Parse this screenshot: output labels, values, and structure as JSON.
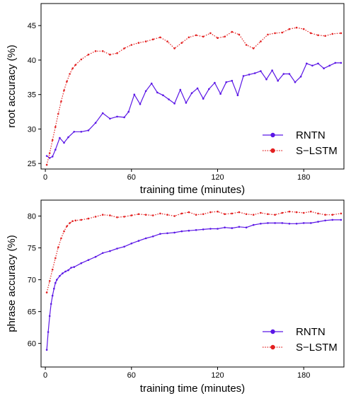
{
  "chart_data": [
    {
      "type": "line",
      "xlabel": "training time (minutes)",
      "ylabel": "root accuracy (%)",
      "xlim": [
        -3,
        208
      ],
      "ylim": [
        24.2,
        48.2
      ],
      "xticks": [
        0,
        60,
        120,
        180
      ],
      "yticks": [
        25,
        30,
        35,
        40,
        45
      ],
      "grid": false,
      "legend_position": "bottom-right",
      "series": [
        {
          "name": "RNTN",
          "color": "#5b17e6",
          "marker": "circle",
          "line_style": "solid",
          "x": [
            1,
            3,
            5,
            7,
            10,
            13,
            16,
            20,
            25,
            30,
            35,
            40,
            45,
            50,
            55,
            58,
            62,
            66,
            70,
            74,
            78,
            82,
            86,
            90,
            94,
            98,
            102,
            106,
            110,
            114,
            118,
            122,
            126,
            130,
            134,
            138,
            142,
            146,
            150,
            154,
            158,
            162,
            166,
            170,
            174,
            178,
            182,
            186,
            190,
            194,
            198,
            202,
            206
          ],
          "y": [
            26.1,
            25.8,
            26.0,
            27.0,
            28.7,
            28.0,
            28.8,
            29.6,
            29.6,
            29.8,
            30.9,
            32.3,
            31.5,
            31.8,
            31.7,
            32.5,
            35.0,
            33.6,
            35.5,
            36.6,
            35.3,
            34.9,
            34.3,
            33.7,
            35.7,
            33.8,
            35.2,
            35.9,
            34.4,
            35.8,
            36.7,
            35.1,
            36.8,
            37.0,
            34.9,
            37.7,
            37.9,
            38.1,
            38.4,
            37.2,
            38.5,
            37.0,
            38.0,
            38.0,
            36.8,
            37.6,
            39.5,
            39.2,
            39.5,
            38.8,
            39.2,
            39.6,
            39.6
          ]
        },
        {
          "name": "S−LSTM",
          "color": "#e32020",
          "marker": "circle",
          "line_style": "dotted",
          "x": [
            1,
            3,
            5,
            7,
            9,
            11,
            13,
            15,
            17,
            19,
            21,
            25,
            30,
            35,
            40,
            45,
            50,
            55,
            60,
            65,
            70,
            75,
            80,
            85,
            90,
            95,
            100,
            105,
            110,
            115,
            120,
            125,
            130,
            135,
            140,
            145,
            150,
            155,
            160,
            165,
            170,
            175,
            180,
            185,
            190,
            195,
            200,
            206
          ],
          "y": [
            24.8,
            26.5,
            28.4,
            30.3,
            32.2,
            34.0,
            35.6,
            36.9,
            38.0,
            38.8,
            39.3,
            40.1,
            40.8,
            41.3,
            41.3,
            40.8,
            41.0,
            41.7,
            42.2,
            42.5,
            42.7,
            43.0,
            43.3,
            42.7,
            41.7,
            42.5,
            43.3,
            43.6,
            43.4,
            43.9,
            43.2,
            43.4,
            44.1,
            43.7,
            42.2,
            41.7,
            42.7,
            43.7,
            43.9,
            44.0,
            44.5,
            44.7,
            44.5,
            43.9,
            43.6,
            43.5,
            43.8,
            43.9
          ]
        }
      ]
    },
    {
      "type": "line",
      "xlabel": "training time (minutes)",
      "ylabel": "phrase accuracy (%)",
      "xlim": [
        -3,
        208
      ],
      "ylim": [
        56.3,
        82.5
      ],
      "xticks": [
        0,
        60,
        120,
        180
      ],
      "yticks": [
        60,
        65,
        70,
        75,
        80
      ],
      "grid": false,
      "legend_position": "bottom-right",
      "series": [
        {
          "name": "RNTN",
          "color": "#5b17e6",
          "marker": "circle",
          "line_style": "solid",
          "x": [
            1,
            2,
            3,
            4,
            5,
            6,
            7,
            8,
            10,
            12,
            14,
            16,
            18,
            20,
            25,
            30,
            35,
            40,
            45,
            50,
            55,
            60,
            65,
            70,
            75,
            80,
            85,
            90,
            95,
            100,
            105,
            110,
            115,
            120,
            125,
            130,
            135,
            140,
            145,
            150,
            155,
            160,
            165,
            170,
            175,
            180,
            185,
            190,
            195,
            200,
            206
          ],
          "y": [
            59.0,
            61.8,
            64.3,
            66.2,
            67.5,
            68.6,
            69.5,
            70.0,
            70.6,
            71.0,
            71.3,
            71.5,
            71.9,
            72.0,
            72.6,
            73.1,
            73.6,
            74.2,
            74.5,
            74.9,
            75.2,
            75.7,
            76.1,
            76.5,
            76.8,
            77.2,
            77.3,
            77.4,
            77.6,
            77.7,
            77.8,
            77.9,
            78.0,
            78.0,
            78.2,
            78.1,
            78.3,
            78.2,
            78.6,
            78.8,
            78.9,
            78.9,
            78.9,
            78.8,
            78.8,
            78.9,
            78.9,
            79.1,
            79.3,
            79.4,
            79.4
          ]
        },
        {
          "name": "S−LSTM",
          "color": "#e32020",
          "marker": "circle",
          "line_style": "dotted",
          "x": [
            1,
            3,
            5,
            7,
            9,
            11,
            13,
            15,
            17,
            19,
            21,
            25,
            30,
            35,
            40,
            45,
            50,
            55,
            60,
            65,
            70,
            75,
            80,
            85,
            90,
            95,
            100,
            105,
            110,
            115,
            120,
            125,
            130,
            135,
            140,
            145,
            150,
            155,
            160,
            165,
            170,
            175,
            180,
            185,
            190,
            195,
            200,
            206
          ],
          "y": [
            68.0,
            69.8,
            71.6,
            73.4,
            75.1,
            76.5,
            77.6,
            78.4,
            78.9,
            79.2,
            79.3,
            79.4,
            79.6,
            79.9,
            80.2,
            80.1,
            79.8,
            79.9,
            80.1,
            80.3,
            80.2,
            80.1,
            80.4,
            80.2,
            80.0,
            80.4,
            80.6,
            80.2,
            80.3,
            80.6,
            80.7,
            80.3,
            80.4,
            80.6,
            80.3,
            80.2,
            80.5,
            80.3,
            80.2,
            80.5,
            80.7,
            80.6,
            80.5,
            80.7,
            80.4,
            80.2,
            80.2,
            80.4
          ]
        }
      ]
    }
  ]
}
